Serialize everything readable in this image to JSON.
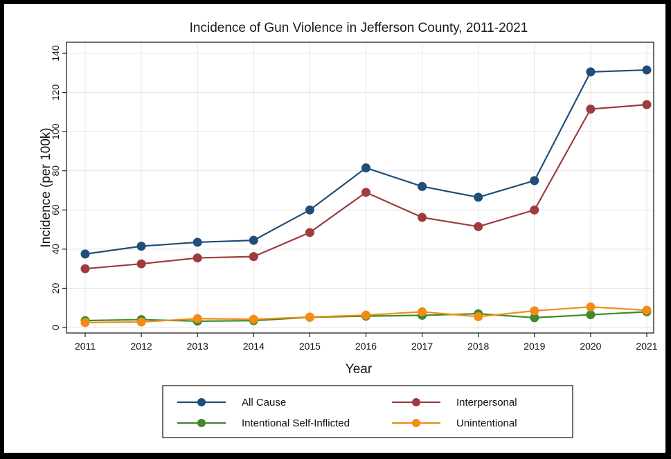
{
  "chart_data": {
    "type": "line",
    "title": "Incidence of Gun Violence in Jefferson County, 2011-2021",
    "xlabel": "Year",
    "ylabel": "Incidence (per 100k)",
    "x": [
      2011,
      2012,
      2013,
      2014,
      2015,
      2016,
      2017,
      2018,
      2019,
      2020,
      2021
    ],
    "x_tick_labels": [
      "2011",
      "2012",
      "2013",
      "2014",
      "2015",
      "2016",
      "2017",
      "2018",
      "2019",
      "2020",
      "2021"
    ],
    "ylim": [
      0,
      140
    ],
    "yticks": [
      0,
      20,
      40,
      60,
      80,
      100,
      120,
      140
    ],
    "y_tick_labels": [
      "0",
      "20",
      "40",
      "60",
      "80",
      "100",
      "120",
      "140"
    ],
    "grid": true,
    "legend_position": "bottom",
    "series": [
      {
        "name": "All Cause",
        "color": "#1f4e79",
        "values": [
          37.5,
          41.5,
          43.5,
          44.5,
          60,
          81.5,
          72,
          66.5,
          75,
          130.5,
          131.5
        ]
      },
      {
        "name": "Interpersonal",
        "color": "#9e3b3f",
        "values": [
          30,
          32.5,
          35.5,
          36.2,
          48.5,
          69,
          56.2,
          51.5,
          60,
          111.5,
          113.8
        ]
      },
      {
        "name": "Intentional Self-Inflicted",
        "color": "#3e8a2e",
        "values": [
          3.5,
          4,
          3.2,
          3.5,
          5.2,
          5.8,
          6.2,
          7,
          5,
          6.5,
          8
        ]
      },
      {
        "name": "Unintentional",
        "color": "#f28c14",
        "values": [
          2.5,
          2.8,
          4.5,
          4.2,
          5.3,
          6.3,
          8,
          5.5,
          8.5,
          10.5,
          8.8
        ]
      }
    ]
  }
}
